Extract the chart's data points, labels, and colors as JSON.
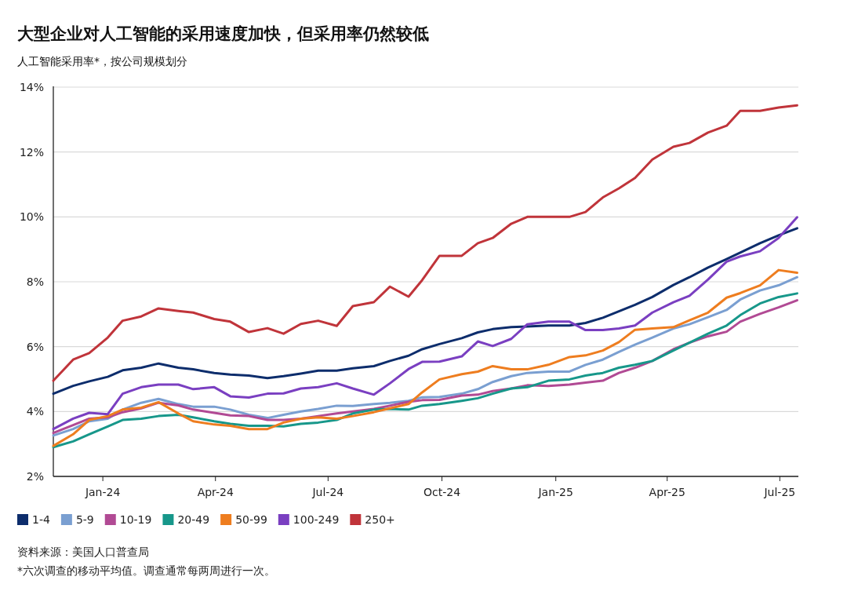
{
  "chart_data": {
    "type": "line",
    "title": "大型企业对人工智能的采用速度加快，但采用率仍然较低",
    "subtitle": "人工智能采用率*，按公司规模划分",
    "annotations": [
      "资料来源：美国人口普查局",
      "*六次调查的移动平均值。调查通常每两周进行一次。"
    ],
    "x": [
      "2023-11-22",
      "2023-12-08",
      "2023-12-21",
      "2024-01-05",
      "2024-01-17",
      "2024-02-01",
      "2024-02-15",
      "2024-03-02",
      "2024-03-14",
      "2024-03-31",
      "2024-04-13",
      "2024-04-28",
      "2024-05-13",
      "2024-05-26",
      "2024-06-09",
      "2024-06-23",
      "2024-07-08",
      "2024-07-21",
      "2024-08-07",
      "2024-08-20",
      "2024-09-04",
      "2024-09-15",
      "2024-09-29",
      "2024-10-17",
      "2024-10-30",
      "2024-11-11",
      "2024-11-26",
      "2024-12-09",
      "2024-12-26",
      "2025-01-12",
      "2025-01-25",
      "2025-02-08",
      "2025-02-21",
      "2025-03-06",
      "2025-03-20",
      "2025-04-06",
      "2025-04-19",
      "2025-05-04",
      "2025-05-19",
      "2025-05-30",
      "2025-06-15",
      "2025-06-30",
      "2025-07-15"
    ],
    "xlim": [
      "2023-11-22",
      "2025-07-16"
    ],
    "xticks": [
      {
        "value": "2024-01-01",
        "label": "Jan-24"
      },
      {
        "value": "2024-04-01",
        "label": "Apr-24"
      },
      {
        "value": "2024-07-01",
        "label": "Jul-24"
      },
      {
        "value": "2024-10-01",
        "label": "Oct-24"
      },
      {
        "value": "2025-01-01",
        "label": "Jan-25"
      },
      {
        "value": "2025-04-01",
        "label": "Apr-25"
      },
      {
        "value": "2025-07-01",
        "label": "Jul-25"
      }
    ],
    "ylim": [
      2,
      14
    ],
    "yticks": [
      {
        "value": 2,
        "label": "2%"
      },
      {
        "value": 4,
        "label": "4%"
      },
      {
        "value": 6,
        "label": "6%"
      },
      {
        "value": 8,
        "label": "8%"
      },
      {
        "value": 10,
        "label": "10%"
      },
      {
        "value": 12,
        "label": "12%"
      },
      {
        "value": 14,
        "label": "14%"
      }
    ],
    "grid": "y",
    "legend": "bottom",
    "marker": "none",
    "line_style": "solid",
    "series": [
      {
        "name": "1-4",
        "color": "#0d2d6c",
        "values": [
          4.55,
          4.79,
          4.93,
          5.07,
          5.27,
          5.35,
          5.48,
          5.35,
          5.3,
          5.19,
          5.14,
          5.11,
          5.03,
          5.09,
          5.17,
          5.26,
          5.26,
          5.33,
          5.4,
          5.56,
          5.72,
          5.92,
          6.08,
          6.26,
          6.44,
          6.54,
          6.6,
          6.62,
          6.65,
          6.65,
          6.73,
          6.89,
          7.09,
          7.29,
          7.53,
          7.9,
          8.14,
          8.44,
          8.7,
          8.9,
          9.19,
          9.43,
          9.65
        ]
      },
      {
        "name": "5-9",
        "color": "#7a9fd1",
        "values": [
          3.26,
          3.46,
          3.7,
          3.78,
          4.06,
          4.27,
          4.39,
          4.23,
          4.15,
          4.15,
          4.06,
          3.9,
          3.8,
          3.9,
          4.0,
          4.08,
          4.18,
          4.17,
          4.23,
          4.27,
          4.33,
          4.44,
          4.45,
          4.55,
          4.69,
          4.91,
          5.09,
          5.19,
          5.23,
          5.23,
          5.44,
          5.6,
          5.84,
          6.06,
          6.28,
          6.56,
          6.69,
          6.91,
          7.13,
          7.45,
          7.73,
          7.89,
          8.14
        ]
      },
      {
        "name": "10-19",
        "color": "#b14a94",
        "values": [
          3.34,
          3.58,
          3.78,
          3.82,
          3.98,
          4.1,
          4.27,
          4.19,
          4.06,
          3.96,
          3.88,
          3.86,
          3.74,
          3.74,
          3.78,
          3.86,
          3.94,
          4.0,
          4.08,
          4.18,
          4.3,
          4.35,
          4.36,
          4.49,
          4.52,
          4.63,
          4.71,
          4.81,
          4.79,
          4.83,
          4.89,
          4.95,
          5.19,
          5.35,
          5.56,
          5.92,
          6.12,
          6.32,
          6.46,
          6.77,
          7.01,
          7.21,
          7.43
        ]
      },
      {
        "name": "20-49",
        "color": "#17978a",
        "values": [
          2.9,
          3.08,
          3.3,
          3.54,
          3.74,
          3.78,
          3.86,
          3.9,
          3.82,
          3.7,
          3.62,
          3.56,
          3.56,
          3.54,
          3.62,
          3.66,
          3.74,
          3.94,
          4.06,
          4.08,
          4.06,
          4.18,
          4.23,
          4.33,
          4.41,
          4.55,
          4.71,
          4.75,
          4.95,
          4.99,
          5.11,
          5.19,
          5.35,
          5.44,
          5.56,
          5.88,
          6.12,
          6.4,
          6.65,
          6.97,
          7.33,
          7.53,
          7.64
        ]
      },
      {
        "name": "50-99",
        "color": "#ee7d1f",
        "values": [
          2.94,
          3.3,
          3.74,
          3.86,
          4.06,
          4.12,
          4.29,
          3.94,
          3.7,
          3.6,
          3.56,
          3.46,
          3.46,
          3.66,
          3.78,
          3.82,
          3.78,
          3.86,
          3.98,
          4.1,
          4.23,
          4.59,
          4.99,
          5.15,
          5.23,
          5.4,
          5.3,
          5.3,
          5.44,
          5.68,
          5.73,
          5.88,
          6.14,
          6.52,
          6.56,
          6.6,
          6.81,
          7.05,
          7.51,
          7.65,
          7.89,
          8.36,
          8.28
        ]
      },
      {
        "name": "100-249",
        "color": "#7a3fc1",
        "values": [
          3.46,
          3.78,
          3.96,
          3.92,
          4.55,
          4.75,
          4.83,
          4.83,
          4.69,
          4.75,
          4.47,
          4.43,
          4.55,
          4.56,
          4.71,
          4.75,
          4.87,
          4.71,
          4.52,
          4.87,
          5.31,
          5.53,
          5.54,
          5.7,
          6.16,
          6.02,
          6.24,
          6.69,
          6.77,
          6.77,
          6.51,
          6.51,
          6.56,
          6.65,
          7.05,
          7.37,
          7.57,
          8.07,
          8.62,
          8.78,
          8.94,
          9.35,
          9.99
        ]
      },
      {
        "name": "250+",
        "color": "#c0343a",
        "values": [
          4.95,
          5.6,
          5.8,
          6.28,
          6.8,
          6.93,
          7.18,
          7.1,
          7.05,
          6.85,
          6.77,
          6.45,
          6.57,
          6.4,
          6.7,
          6.8,
          6.64,
          7.25,
          7.37,
          7.85,
          7.54,
          8.05,
          8.8,
          8.8,
          9.19,
          9.35,
          9.79,
          10.0,
          10.0,
          10.0,
          10.15,
          10.6,
          10.88,
          11.2,
          11.77,
          12.16,
          12.28,
          12.6,
          12.81,
          13.27,
          13.27,
          13.37,
          13.44
        ]
      }
    ]
  }
}
